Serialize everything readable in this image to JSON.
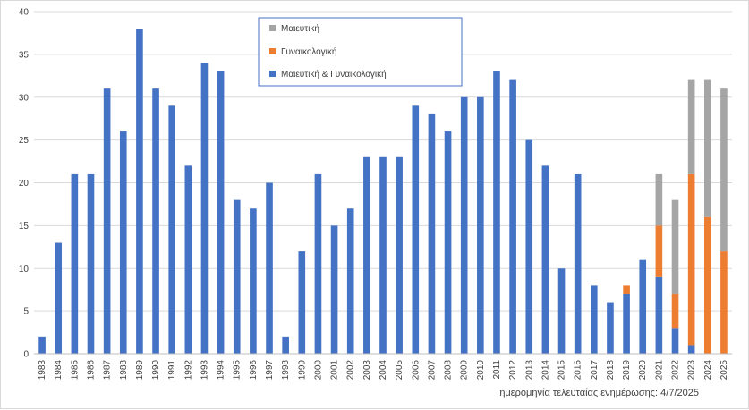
{
  "chart_data": {
    "type": "bar",
    "stacked": true,
    "categories": [
      "1983",
      "1984",
      "1985",
      "1986",
      "1987",
      "1988",
      "1989",
      "1990",
      "1991",
      "1992",
      "1993",
      "1994",
      "1995",
      "1996",
      "1997",
      "1998",
      "1999",
      "2000",
      "2001",
      "2002",
      "2003",
      "2004",
      "2005",
      "2006",
      "2007",
      "2008",
      "2009",
      "2010",
      "2011",
      "2012",
      "2013",
      "2014",
      "2015",
      "2016",
      "2017",
      "2018",
      "2019",
      "2020",
      "2021",
      "2022",
      "2023",
      "2024",
      "2025"
    ],
    "series": [
      {
        "name": "Μαιευτική & Γυναικολογική",
        "color": "#4472c4",
        "values": [
          2,
          13,
          21,
          21,
          31,
          26,
          38,
          31,
          29,
          22,
          34,
          33,
          18,
          17,
          20,
          2,
          12,
          21,
          15,
          17,
          23,
          23,
          23,
          29,
          28,
          26,
          30,
          30,
          33,
          32,
          25,
          22,
          10,
          21,
          8,
          6,
          7,
          11,
          9,
          3,
          1,
          0,
          0
        ]
      },
      {
        "name": "Γυναικολογική",
        "color": "#ed7d31",
        "values": [
          0,
          0,
          0,
          0,
          0,
          0,
          0,
          0,
          0,
          0,
          0,
          0,
          0,
          0,
          0,
          0,
          0,
          0,
          0,
          0,
          0,
          0,
          0,
          0,
          0,
          0,
          0,
          0,
          0,
          0,
          0,
          0,
          0,
          0,
          0,
          0,
          1,
          0,
          6,
          4,
          20,
          16,
          12
        ]
      },
      {
        "name": "Μαιευτική",
        "color": "#a5a5a5",
        "values": [
          0,
          0,
          0,
          0,
          0,
          0,
          0,
          0,
          0,
          0,
          0,
          0,
          0,
          0,
          0,
          0,
          0,
          0,
          0,
          0,
          0,
          0,
          0,
          0,
          0,
          0,
          0,
          0,
          0,
          0,
          0,
          0,
          0,
          0,
          0,
          0,
          0,
          0,
          6,
          11,
          11,
          16,
          19
        ]
      }
    ],
    "ylim": [
      0,
      40
    ],
    "yticks": [
      0,
      5,
      10,
      15,
      20,
      25,
      30,
      35,
      40
    ],
    "grid": true,
    "legend_placement": "top-center",
    "legend_order": [
      "Μαιευτική",
      "Γυναικολογική",
      "Μαιευτική & Γυναικολογική"
    ],
    "footnote": "ημερομηνία τελευταίας ενημέρωσης: 4/7/2025"
  }
}
